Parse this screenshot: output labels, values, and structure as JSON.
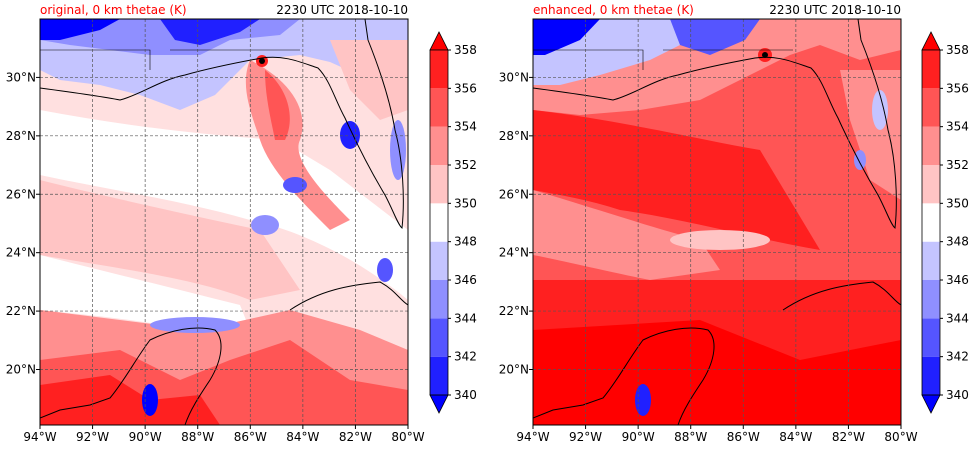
{
  "chart_data": [
    {
      "type": "heatmap",
      "title_left": "original, 0 km thetae (K)",
      "title_right": "2230 UTC 2018-10-10",
      "x_ticks": [
        "94°W",
        "92°W",
        "90°W",
        "88°W",
        "86°W",
        "84°W",
        "82°W",
        "80°W"
      ],
      "y_ticks": [
        "20°N",
        "22°N",
        "24°N",
        "26°N",
        "28°N",
        "30°N"
      ],
      "x_range_deg": [
        -94,
        -80
      ],
      "y_range_deg": [
        18.1,
        32.0
      ],
      "grid": true,
      "colorbar": {
        "levels": [
          "340",
          "342",
          "344",
          "346",
          "348",
          "350",
          "352",
          "354",
          "356",
          "358"
        ],
        "colors": [
          "#0000ff",
          "#2020ff",
          "#5555ff",
          "#8f8fff",
          "#c4c4ff",
          "#ffffff",
          "#ffc4c4",
          "#ff8f8f",
          "#ff5555",
          "#ff2020",
          "#ff0000"
        ]
      },
      "dominant_field": "mixed"
    },
    {
      "type": "heatmap",
      "title_left": "enhanced, 0 km thetae (K)",
      "title_right": "2230 UTC 2018-10-10",
      "x_ticks": [
        "94°W",
        "92°W",
        "90°W",
        "88°W",
        "86°W",
        "84°W",
        "82°W",
        "80°W"
      ],
      "y_ticks": [
        "20°N",
        "22°N",
        "24°N",
        "26°N",
        "28°N",
        "30°N"
      ],
      "x_range_deg": [
        -94,
        -80
      ],
      "y_range_deg": [
        18.1,
        32.0
      ],
      "grid": true,
      "colorbar": {
        "levels": [
          "340",
          "342",
          "344",
          "346",
          "348",
          "350",
          "352",
          "354",
          "356",
          "358"
        ],
        "colors": [
          "#0000ff",
          "#2020ff",
          "#5555ff",
          "#8f8fff",
          "#c4c4ff",
          "#ffffff",
          "#ffc4c4",
          "#ff8f8f",
          "#ff5555",
          "#ff2020",
          "#ff0000"
        ]
      },
      "dominant_field": "warm"
    }
  ]
}
